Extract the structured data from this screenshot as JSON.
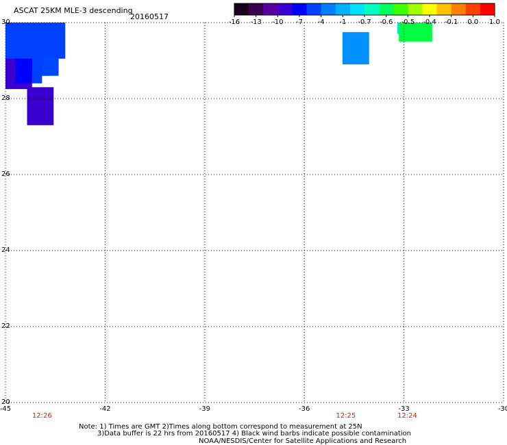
{
  "title": "ASCAT 25KM MLE-3 descending",
  "date": "20160517",
  "colorbar": {
    "colors": [
      "#1a001a",
      "#3a0050",
      "#5a00a0",
      "#3a00d0",
      "#0000ff",
      "#0040ff",
      "#0080ff",
      "#00b0ff",
      "#00e0ff",
      "#00ffc0",
      "#00ff60",
      "#40ff00",
      "#a0ff00",
      "#ffff00",
      "#ffc000",
      "#ff8000",
      "#ff4000",
      "#ff0000"
    ],
    "tick_labels": [
      "-16",
      "-13",
      "-10",
      "-7",
      "-4",
      "-1",
      "-0.7",
      "-0.6",
      "-0.5",
      "-0.4",
      "-0.1",
      "0.0",
      "1.0"
    ]
  },
  "map": {
    "lon_range": [
      -45,
      -30
    ],
    "lat_range": [
      20,
      30
    ],
    "lon_ticks": [
      -45,
      -42,
      -39,
      -36,
      -33,
      -30
    ],
    "lat_ticks": [
      20,
      22,
      24,
      26,
      28,
      30
    ],
    "x_labels": [
      "-45",
      "-42",
      "-39",
      "-36",
      "-33",
      "-30"
    ],
    "y_labels": [
      "20",
      "22",
      "24",
      "26",
      "28",
      "30"
    ],
    "grid": true,
    "cells": [
      {
        "lon0": -45.0,
        "lon1": -43.2,
        "lat0": 29.05,
        "lat1": 30.0,
        "color": "#0040ff"
      },
      {
        "lon0": -45.0,
        "lon1": -43.6,
        "lat0": 28.6,
        "lat1": 29.2,
        "color": "#0040ff"
      },
      {
        "lon0": -43.9,
        "lon1": -43.4,
        "lat0": 28.6,
        "lat1": 29.1,
        "color": "#0048ff"
      },
      {
        "lon0": -45.0,
        "lon1": -44.2,
        "lat0": 28.25,
        "lat1": 29.05,
        "color": "#3a00d0"
      },
      {
        "lon0": -44.7,
        "lon1": -44.2,
        "lat0": 28.4,
        "lat1": 29.05,
        "color": "#0000ff"
      },
      {
        "lon0": -44.2,
        "lon1": -43.9,
        "lat0": 28.4,
        "lat1": 28.8,
        "color": "#0040ff"
      },
      {
        "lon0": -44.35,
        "lon1": -43.55,
        "lat0": 27.3,
        "lat1": 28.3,
        "color": "#3a00d0"
      },
      {
        "lon0": -34.85,
        "lon1": -34.05,
        "lat0": 28.9,
        "lat1": 29.75,
        "color": "#0090ff"
      },
      {
        "lon0": -33.2,
        "lon1": -32.85,
        "lat0": 29.7,
        "lat1": 30.0,
        "color": "#00e0ff"
      },
      {
        "lon0": -33.15,
        "lon1": -32.35,
        "lat0": 29.65,
        "lat1": 29.95,
        "color": "#00ffcc"
      },
      {
        "lon0": -33.15,
        "lon1": -32.95,
        "lat0": 29.5,
        "lat1": 29.75,
        "color": "#00ff40"
      },
      {
        "lon0": -33.15,
        "lon1": -32.15,
        "lat0": 29.5,
        "lat1": 30.0,
        "color": "#00ff40"
      }
    ],
    "times": [
      {
        "lon": -43.9,
        "label": "12:26"
      },
      {
        "lon": -34.75,
        "label": "12:25"
      },
      {
        "lon": -32.9,
        "label": "12:24"
      }
    ]
  },
  "notes": {
    "line1": "Note: 1) Times are GMT 2)Times along bottom correspond to measurement at 25N",
    "line2": "3)Data buffer is 22 hrs from 20160517 4) Black wind barbs indicate possible contamination",
    "line3": "NOAA/NESDIS/Center for Satellite Applications and Research"
  }
}
